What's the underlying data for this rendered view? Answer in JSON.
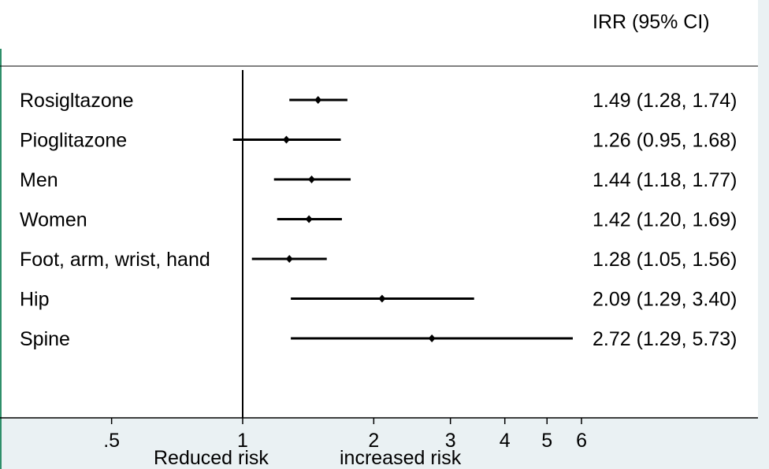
{
  "chart_data": {
    "type": "forest",
    "column_header": "IRR (95% CI)",
    "reference_value": 1,
    "x_scale": "log",
    "x_ticks": [
      0.5,
      1,
      2,
      3,
      4,
      5,
      6
    ],
    "x_tick_labels": [
      ".5",
      "1",
      "2",
      "3",
      "4",
      "5",
      "6"
    ],
    "x_annotations": {
      "left": "Reduced risk",
      "right": "increased risk"
    },
    "rows": [
      {
        "label": "Rosigltazone",
        "estimate": 1.49,
        "lower": 1.28,
        "upper": 1.74,
        "ci_text": "1.49 (1.28, 1.74)"
      },
      {
        "label": "Pioglitazone",
        "estimate": 1.26,
        "lower": 0.95,
        "upper": 1.68,
        "ci_text": "1.26 (0.95, 1.68)"
      },
      {
        "label": "Men",
        "estimate": 1.44,
        "lower": 1.18,
        "upper": 1.77,
        "ci_text": "1.44 (1.18, 1.77)"
      },
      {
        "label": "Women",
        "estimate": 1.42,
        "lower": 1.2,
        "upper": 1.69,
        "ci_text": "1.42 (1.20, 1.69)"
      },
      {
        "label": "Foot, arm, wrist, hand",
        "estimate": 1.28,
        "lower": 1.05,
        "upper": 1.56,
        "ci_text": "1.28 (1.05, 1.56)"
      },
      {
        "label": "Hip",
        "estimate": 2.09,
        "lower": 1.29,
        "upper": 3.4,
        "ci_text": "2.09 (1.29, 3.40)"
      },
      {
        "label": "Spine",
        "estimate": 2.72,
        "lower": 1.29,
        "upper": 5.73,
        "ci_text": "2.72 (1.29, 5.73)"
      }
    ],
    "colors": {
      "background": "#ffffff",
      "axis_band": "#eaf1f3",
      "accent_line": "#2f8f6a",
      "ink": "#000000"
    }
  }
}
